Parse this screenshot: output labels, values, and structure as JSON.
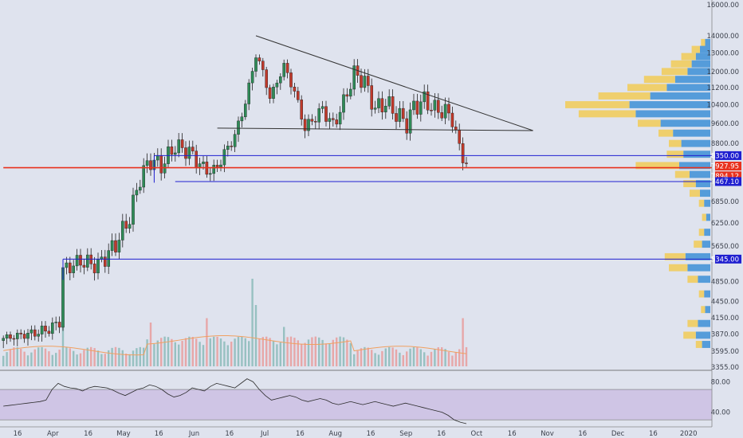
{
  "colors": {
    "background": "#dfe3ee",
    "up": "#2e8b57",
    "down": "#c0392b",
    "volume_up": "#8fbcbb",
    "volume_down": "#e8a0a0",
    "volume_ma": "#f0a060",
    "profile_blue": "#3d8fd6",
    "profile_yellow": "#f2c94c",
    "level_blue": "#1f1fd0",
    "level_red": "#e8321e",
    "rsi_band": "#cdbfe3",
    "rsi_line": "#2b2b2b"
  },
  "chart_data": {
    "type": "candlestick",
    "title": "",
    "xlabel": "",
    "ylabel": "",
    "ylim": [
      3355,
      16000
    ],
    "log_scale": true,
    "x_ticks": [
      "16",
      "Apr",
      "16",
      "May",
      "16",
      "Jun",
      "16",
      "Jul",
      "16",
      "Aug",
      "16",
      "Sep",
      "16",
      "Oct",
      "16",
      "Nov",
      "16",
      "Dec",
      "16",
      "2020"
    ],
    "y_ticks": [
      "16000.00",
      "14000.00",
      "13000.00",
      "12000.00",
      "11200.00",
      "10400.00",
      "9600.00",
      "8800.00",
      "7467.10",
      "6850.00",
      "6250.00",
      "5650.00",
      "5345.00",
      "4850.00",
      "4450.00",
      "4150.00",
      "3870.00",
      "3595.00",
      "3355.00"
    ],
    "price_tags": [
      {
        "label": "8350.00",
        "color": "#1f1fd0"
      },
      {
        "label": "7927.95",
        "color": "#e8321e"
      },
      {
        "label": "7894.12",
        "color": "#e8321e"
      },
      {
        "label": "7467.10",
        "color": "#1f1fd0"
      },
      {
        "label": "5345.00",
        "color": "#1f1fd0"
      }
    ],
    "anchors": [
      [
        0,
        3800
      ],
      [
        10,
        3900
      ],
      [
        14,
        3980
      ],
      [
        16,
        4100
      ],
      [
        17,
        5100
      ],
      [
        22,
        5300
      ],
      [
        27,
        5200
      ],
      [
        32,
        5700
      ],
      [
        36,
        6400
      ],
      [
        39,
        7600
      ],
      [
        42,
        8200
      ],
      [
        45,
        8000
      ],
      [
        49,
        8700
      ],
      [
        53,
        8500
      ],
      [
        57,
        7900
      ],
      [
        60,
        7800
      ],
      [
        62,
        8200
      ],
      [
        66,
        9100
      ],
      [
        69,
        10500
      ],
      [
        72,
        12900
      ],
      [
        74,
        12000
      ],
      [
        76,
        10700
      ],
      [
        80,
        12300
      ],
      [
        83,
        11000
      ],
      [
        86,
        9400
      ],
      [
        91,
        10200
      ],
      [
        94,
        9500
      ],
      [
        97,
        10500
      ],
      [
        100,
        11900
      ],
      [
        103,
        11500
      ],
      [
        106,
        10200
      ],
      [
        109,
        10500
      ],
      [
        112,
        10000
      ],
      [
        115,
        9600
      ],
      [
        117,
        10300
      ],
      [
        120,
        10600
      ],
      [
        123,
        10200
      ],
      [
        126,
        10100
      ],
      [
        128,
        9800
      ],
      [
        130,
        8600
      ],
      [
        132,
        8100
      ]
    ],
    "volume_spikes": [
      [
        17,
        0.45
      ],
      [
        42,
        0.5
      ],
      [
        58,
        0.55
      ],
      [
        71,
        1.0
      ],
      [
        72,
        0.7
      ],
      [
        80,
        0.45
      ],
      [
        131,
        0.55
      ]
    ],
    "rsi": {
      "ylim": [
        25,
        92
      ],
      "y_ticks": [
        "80.00",
        "40.00"
      ],
      "band": [
        30,
        70
      ],
      "values": [
        48,
        49,
        50,
        51,
        52,
        53,
        54,
        56,
        70,
        78,
        74,
        72,
        71,
        68,
        72,
        74,
        73,
        72,
        69,
        65,
        62,
        66,
        70,
        72,
        76,
        74,
        70,
        64,
        60,
        62,
        66,
        72,
        70,
        68,
        74,
        78,
        76,
        74,
        72,
        78,
        84,
        80,
        70,
        62,
        56,
        58,
        60,
        62,
        60,
        56,
        54,
        56,
        58,
        56,
        52,
        50,
        52,
        54,
        52,
        50,
        52,
        54,
        52,
        50,
        48,
        50,
        52,
        50,
        48,
        46,
        44,
        42,
        40,
        36,
        30,
        27,
        25
      ]
    },
    "triangle": {
      "upper": [
        [
          72,
          14000
        ],
        [
          151,
          9300
        ]
      ],
      "lower": [
        [
          61,
          9400
        ],
        [
          151,
          9300
        ]
      ]
    },
    "levels": [
      {
        "price": 8350,
        "from": 43,
        "color": "#1f1fd0"
      },
      {
        "price": 7467.1,
        "from": 49,
        "color": "#1f1fd0"
      },
      {
        "price": 7927.95,
        "from": 0,
        "color": "#e8321e"
      },
      {
        "price": 5345,
        "from": 17,
        "color": "#1f1fd0"
      }
    ],
    "volume_profile": {
      "price_min": 3600,
      "price_max": 14000,
      "bins": [
        {
          "price": 13600,
          "blue": 0.05,
          "yellow": 0.04
        },
        {
          "price": 13200,
          "blue": 0.1,
          "yellow": 0.08
        },
        {
          "price": 12800,
          "blue": 0.14,
          "yellow": 0.14
        },
        {
          "price": 12400,
          "blue": 0.18,
          "yellow": 0.2
        },
        {
          "price": 12000,
          "blue": 0.22,
          "yellow": 0.25
        },
        {
          "price": 11600,
          "blue": 0.34,
          "yellow": 0.3
        },
        {
          "price": 11200,
          "blue": 0.42,
          "yellow": 0.38
        },
        {
          "price": 10800,
          "blue": 0.58,
          "yellow": 0.5
        },
        {
          "price": 10400,
          "blue": 0.78,
          "yellow": 0.62
        },
        {
          "price": 10000,
          "blue": 0.72,
          "yellow": 0.55
        },
        {
          "price": 9600,
          "blue": 0.48,
          "yellow": 0.22
        },
        {
          "price": 9200,
          "blue": 0.36,
          "yellow": 0.14
        },
        {
          "price": 8800,
          "blue": 0.28,
          "yellow": 0.12
        },
        {
          "price": 8400,
          "blue": 0.26,
          "yellow": 0.16
        },
        {
          "price": 8000,
          "blue": 0.3,
          "yellow": 0.42
        },
        {
          "price": 7700,
          "blue": 0.2,
          "yellow": 0.14
        },
        {
          "price": 7400,
          "blue": 0.14,
          "yellow": 0.12
        },
        {
          "price": 7100,
          "blue": 0.1,
          "yellow": 0.1
        },
        {
          "price": 6800,
          "blue": 0.06,
          "yellow": 0.05
        },
        {
          "price": 6400,
          "blue": 0.04,
          "yellow": 0.04
        },
        {
          "price": 6000,
          "blue": 0.06,
          "yellow": 0.05
        },
        {
          "price": 5700,
          "blue": 0.08,
          "yellow": 0.08
        },
        {
          "price": 5400,
          "blue": 0.24,
          "yellow": 0.2
        },
        {
          "price": 5150,
          "blue": 0.22,
          "yellow": 0.18
        },
        {
          "price": 4900,
          "blue": 0.12,
          "yellow": 0.1
        },
        {
          "price": 4600,
          "blue": 0.06,
          "yellow": 0.05
        },
        {
          "price": 4300,
          "blue": 0.05,
          "yellow": 0.04
        },
        {
          "price": 4050,
          "blue": 0.12,
          "yellow": 0.1
        },
        {
          "price": 3850,
          "blue": 0.14,
          "yellow": 0.12
        },
        {
          "price": 3700,
          "blue": 0.08,
          "yellow": 0.06
        }
      ]
    }
  }
}
